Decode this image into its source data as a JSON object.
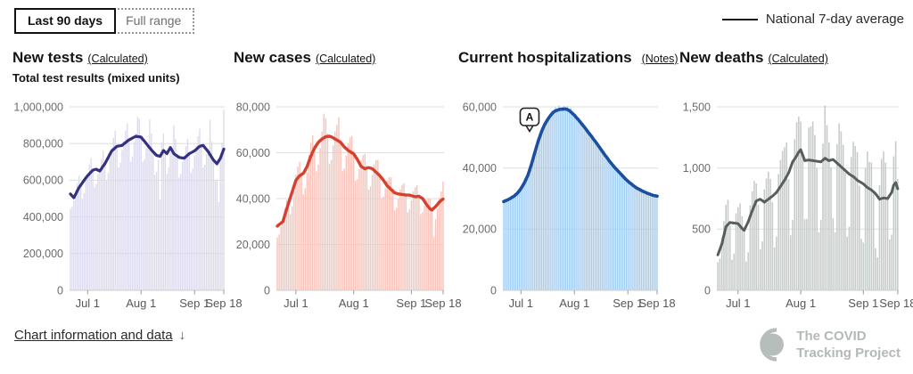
{
  "toggle": {
    "options": [
      {
        "label": "Last 90 days",
        "selected": true
      },
      {
        "label": "Full range",
        "selected": false
      }
    ]
  },
  "legend": {
    "label": "National 7-day average",
    "line_color": "#1a1a1a",
    "position": "top-right"
  },
  "footer": {
    "link_label": "Chart information and data",
    "arrow": "↓"
  },
  "logo": {
    "line1": "The COVID",
    "line2": "Tracking Project",
    "color": "#b7bdbb"
  },
  "chart_data": [
    {
      "type": "bar+line",
      "title": "New tests",
      "meta_link": "(Calculated)",
      "subtitle": "Total test results (mixed units)",
      "series_note": "bars = daily new tests, line = national 7-day average",
      "bar_color": "#dcdaed",
      "line_color": "#333180",
      "ylim": [
        0,
        1000000
      ],
      "grid": true,
      "y_ticks": [
        {
          "v": 0,
          "label": "0"
        },
        {
          "v": 200000,
          "label": "200,000"
        },
        {
          "v": 400000,
          "label": "400,000"
        },
        {
          "v": 600000,
          "label": "600,000"
        },
        {
          "v": 800000,
          "label": "800,000"
        },
        {
          "v": 1000000,
          "label": "1,000,000"
        }
      ],
      "x_ticks": [
        {
          "i": 10,
          "label": "Jul 1"
        },
        {
          "i": 41,
          "label": "Aug 1"
        },
        {
          "i": 72,
          "label": "Sep 1"
        },
        {
          "i": 89,
          "label": "Sep 18"
        }
      ],
      "bars": [
        445000,
        455000,
        490000,
        535000,
        585000,
        625000,
        575000,
        500000,
        530000,
        595000,
        640000,
        685000,
        720000,
        655000,
        560000,
        580000,
        635000,
        665000,
        715000,
        760000,
        690000,
        600000,
        640000,
        720000,
        775000,
        830000,
        870000,
        785000,
        670000,
        695000,
        765000,
        815000,
        870000,
        910000,
        820000,
        700000,
        730000,
        810000,
        855000,
        945000,
        935000,
        835000,
        700000,
        715000,
        775000,
        805000,
        930000,
        855000,
        755000,
        630000,
        645000,
        710000,
        495000,
        805000,
        855000,
        755000,
        635000,
        670000,
        755000,
        775000,
        900000,
        825000,
        730000,
        615000,
        635000,
        700000,
        735000,
        785000,
        825000,
        745000,
        640000,
        665000,
        735000,
        785000,
        840000,
        880000,
        790000,
        670000,
        685000,
        745000,
        770000,
        930000,
        810000,
        710000,
        595000,
        605000,
        480000,
        735000,
        805000,
        985000
      ],
      "avg": [
        525000,
        515000,
        505000,
        523000,
        542000,
        560000,
        573000,
        587000,
        600000,
        613000,
        625000,
        635000,
        645000,
        655000,
        658000,
        660000,
        655000,
        650000,
        663000,
        677000,
        690000,
        708000,
        725000,
        743000,
        760000,
        768000,
        777000,
        785000,
        787000,
        788000,
        790000,
        798000,
        805000,
        813000,
        820000,
        825000,
        830000,
        835000,
        840000,
        838000,
        837000,
        835000,
        823000,
        812000,
        800000,
        788000,
        777000,
        765000,
        755000,
        745000,
        735000,
        733000,
        730000,
        746000,
        762000,
        754000,
        745000,
        762000,
        778000,
        762000,
        745000,
        738000,
        732000,
        725000,
        723000,
        722000,
        720000,
        728000,
        737000,
        745000,
        750000,
        755000,
        760000,
        768000,
        777000,
        785000,
        788000,
        790000,
        778000,
        767000,
        755000,
        740000,
        725000,
        710000,
        700000,
        690000,
        705000,
        720000,
        745000,
        770000
      ]
    },
    {
      "type": "bar+line",
      "title": "New cases",
      "meta_link": "(Calculated)",
      "series_note": "bars = daily new cases, line = national 7-day average",
      "bar_color": "#f8c5bc",
      "line_color": "#d6402e",
      "ylim": [
        0,
        80000
      ],
      "grid": true,
      "y_ticks": [
        {
          "v": 0,
          "label": "0"
        },
        {
          "v": 20000,
          "label": "20,000"
        },
        {
          "v": 40000,
          "label": "40,000"
        },
        {
          "v": 60000,
          "label": "60,000"
        },
        {
          "v": 80000,
          "label": "80,000"
        }
      ],
      "x_ticks": [
        {
          "i": 10,
          "label": "Jul 1"
        },
        {
          "i": 41,
          "label": "Aug 1"
        },
        {
          "i": 72,
          "label": "Sep 1"
        },
        {
          "i": 89,
          "label": "Sep 18"
        }
      ],
      "bars": [
        23000,
        24400,
        27800,
        31500,
        36000,
        39500,
        38800,
        33200,
        36600,
        43200,
        50400,
        53900,
        56000,
        51500,
        41800,
        44600,
        51300,
        59100,
        64400,
        67500,
        63200,
        51900,
        54800,
        62000,
        69300,
        77000,
        75000,
        68400,
        55100,
        56900,
        63200,
        69300,
        72100,
        75500,
        65800,
        52100,
        53100,
        58700,
        64100,
        66600,
        67200,
        60700,
        47800,
        48500,
        52700,
        56700,
        58900,
        59400,
        54400,
        43900,
        45300,
        50400,
        54900,
        56700,
        56900,
        51000,
        40200,
        40800,
        44500,
        47800,
        49300,
        49300,
        44200,
        34900,
        36000,
        39900,
        44000,
        46000,
        46700,
        42300,
        34000,
        35300,
        39200,
        43100,
        44900,
        45800,
        41800,
        33200,
        34000,
        36900,
        39400,
        40200,
        39800,
        35700,
        23300,
        31000,
        35600,
        40400,
        43100,
        47500
      ],
      "avg": [
        28000,
        28700,
        29300,
        30000,
        32700,
        35300,
        38000,
        40500,
        43000,
        45500,
        48000,
        49000,
        50000,
        50500,
        51000,
        52500,
        54000,
        56300,
        58500,
        60300,
        62000,
        63300,
        64500,
        65300,
        66000,
        66500,
        67000,
        67100,
        67200,
        66900,
        66500,
        66000,
        65500,
        65000,
        64500,
        63500,
        62500,
        61800,
        61000,
        60500,
        60000,
        59500,
        58300,
        57000,
        55500,
        54000,
        53500,
        53000,
        53300,
        53500,
        53300,
        53000,
        52300,
        51500,
        50800,
        50000,
        49000,
        48000,
        46800,
        45500,
        44800,
        44000,
        43300,
        42500,
        42300,
        42000,
        41900,
        41800,
        41700,
        41500,
        41500,
        41500,
        41300,
        41000,
        40800,
        40900,
        41000,
        40500,
        40000,
        38800,
        37500,
        36500,
        35500,
        35000,
        35800,
        36500,
        37500,
        38500,
        39200,
        39800
      ]
    },
    {
      "type": "bar+line",
      "title": "Current hospitalizations",
      "meta_link": "(Notes)",
      "series_note": "bars = currently hospitalized, line = national 7-day average",
      "bar_color": "#a3cdf1",
      "line_color": "#1b4fa0",
      "ylim": [
        0,
        60000
      ],
      "grid": true,
      "annotation": {
        "i": 15,
        "label": "A"
      },
      "y_ticks": [
        {
          "v": 0,
          "label": "0"
        },
        {
          "v": 20000,
          "label": "20,000"
        },
        {
          "v": 40000,
          "label": "40,000"
        },
        {
          "v": 60000,
          "label": "60,000"
        }
      ],
      "x_ticks": [
        {
          "i": 10,
          "label": "Jul 1"
        },
        {
          "i": 41,
          "label": "Aug 1"
        },
        {
          "i": 72,
          "label": "Sep 1"
        },
        {
          "i": 89,
          "label": "Sep 18"
        }
      ],
      "bars": [
        29300,
        28900,
        30000,
        29600,
        30700,
        30000,
        30900,
        31600,
        31400,
        33000,
        33100,
        34800,
        34700,
        36500,
        37900,
        38900,
        41500,
        42800,
        45600,
        46400,
        48900,
        50700,
        51600,
        53800,
        54300,
        56000,
        55800,
        57200,
        58800,
        58600,
        59900,
        59400,
        60400,
        59400,
        60000,
        60300,
        59600,
        60300,
        59300,
        59600,
        58000,
        57400,
        56900,
        55600,
        55800,
        54400,
        54500,
        52700,
        52600,
        52000,
        50600,
        50800,
        49300,
        49400,
        47500,
        47300,
        46700,
        45200,
        45300,
        43800,
        43900,
        42000,
        41900,
        41400,
        40000,
        40300,
        39000,
        39200,
        37500,
        37500,
        37100,
        35800,
        36200,
        35000,
        35400,
        33800,
        34000,
        33800,
        32800,
        33400,
        32400,
        32900,
        31600,
        31900,
        31900,
        31000,
        31700,
        30800,
        31500,
        30300
      ],
      "avg": [
        29000,
        29300,
        29500,
        29800,
        30100,
        30500,
        30800,
        31300,
        31800,
        32500,
        33300,
        34200,
        35200,
        36400,
        37600,
        39300,
        41000,
        43000,
        45000,
        46900,
        48800,
        50400,
        52000,
        53300,
        54500,
        55400,
        56300,
        57100,
        57800,
        58300,
        58700,
        58900,
        59100,
        59200,
        59200,
        59300,
        59300,
        59100,
        58800,
        58300,
        57800,
        57300,
        56600,
        56000,
        55300,
        54600,
        53900,
        53200,
        52500,
        51700,
        51000,
        50300,
        49500,
        48800,
        48000,
        47200,
        46400,
        45600,
        44800,
        44000,
        43300,
        42500,
        41800,
        41100,
        40400,
        39800,
        39200,
        38600,
        38000,
        37400,
        36800,
        36200,
        35700,
        35200,
        34800,
        34300,
        33900,
        33500,
        33200,
        32900,
        32600,
        32300,
        32100,
        31800,
        31600,
        31400,
        31200,
        31000,
        30900,
        30800
      ]
    },
    {
      "type": "bar+line",
      "title": "New deaths",
      "meta_link": "(Calculated)",
      "series_note": "bars = daily new deaths, line = national 7-day average",
      "bar_color": "#c7cccb",
      "line_color": "#565f5b",
      "ylim": [
        0,
        1500
      ],
      "grid": true,
      "y_ticks": [
        {
          "v": 0,
          "label": "0"
        },
        {
          "v": 500,
          "label": "500"
        },
        {
          "v": 1000,
          "label": "1,000"
        },
        {
          "v": 1500,
          "label": "1,500"
        }
      ],
      "x_ticks": [
        {
          "i": 10,
          "label": "Jul 1"
        },
        {
          "i": 41,
          "label": "Aug 1"
        },
        {
          "i": 72,
          "label": "Sep 1"
        },
        {
          "i": 89,
          "label": "Sep 18"
        }
      ],
      "bars": [
        230,
        260,
        435,
        565,
        700,
        740,
        530,
        250,
        300,
        630,
        680,
        710,
        605,
        520,
        235,
        310,
        695,
        810,
        895,
        875,
        700,
        335,
        400,
        825,
        915,
        970,
        910,
        720,
        350,
        440,
        950,
        1065,
        1140,
        1170,
        1210,
        910,
        450,
        575,
        1235,
        1375,
        1420,
        1380,
        1095,
        580,
        585,
        1330,
        1340,
        1380,
        1270,
        1000,
        475,
        575,
        1200,
        1510,
        1350,
        1210,
        1005,
        590,
        475,
        1195,
        1365,
        1300,
        1190,
        960,
        440,
        520,
        1090,
        1215,
        1180,
        1130,
        855,
        420,
        390,
        1000,
        1135,
        1050,
        1045,
        790,
        345,
        270,
        860,
        1075,
        1135,
        1045,
        760,
        415,
        455,
        1095,
        1220,
        910
      ],
      "avg": [
        290,
        335,
        380,
        450,
        520,
        538,
        555,
        553,
        550,
        548,
        545,
        525,
        505,
        490,
        525,
        560,
        605,
        650,
        690,
        730,
        738,
        745,
        733,
        720,
        733,
        745,
        758,
        770,
        785,
        800,
        825,
        850,
        875,
        900,
        930,
        960,
        1005,
        1050,
        1075,
        1100,
        1130,
        1150,
        1105,
        1060,
        1063,
        1065,
        1063,
        1060,
        1058,
        1055,
        1053,
        1050,
        1065,
        1080,
        1070,
        1060,
        1065,
        1070,
        1055,
        1040,
        1025,
        1010,
        995,
        980,
        965,
        950,
        940,
        930,
        915,
        900,
        890,
        880,
        870,
        855,
        840,
        830,
        820,
        805,
        790,
        768,
        745,
        750,
        755,
        753,
        750,
        775,
        800,
        860,
        880,
        830
      ]
    }
  ]
}
